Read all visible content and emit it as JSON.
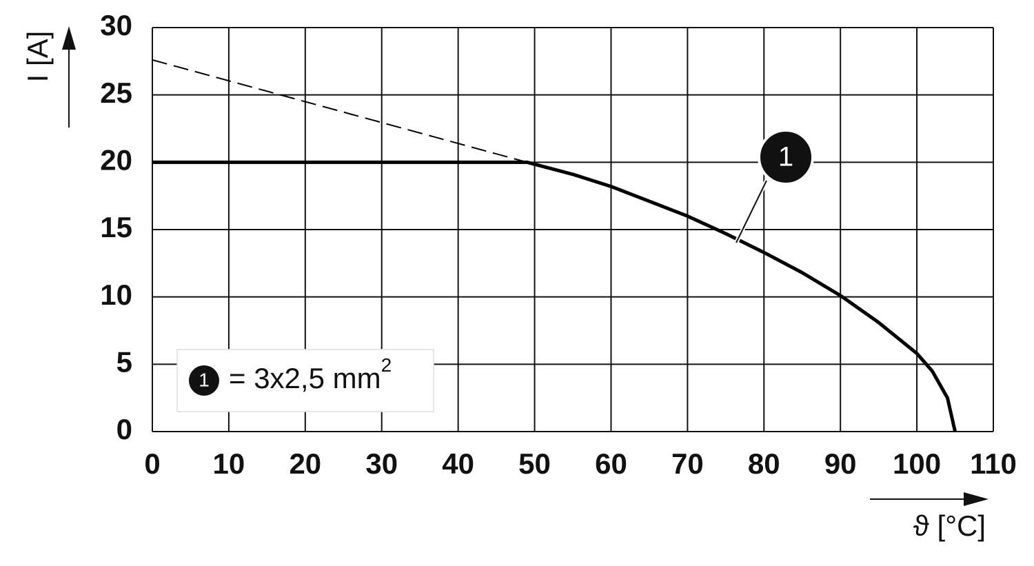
{
  "chart_data": {
    "type": "line",
    "x_label": "ϑ [°C]",
    "y_label": "I [A]",
    "xlim": [
      0,
      110
    ],
    "xticks": [
      0,
      10,
      20,
      30,
      40,
      50,
      60,
      70,
      80,
      90,
      100,
      110
    ],
    "ylim": [
      0,
      30
    ],
    "yticks": [
      0,
      5,
      10,
      15,
      20,
      25,
      30
    ],
    "grid": true,
    "series": [
      {
        "name": "1",
        "color": "#000000",
        "style": "solid",
        "x": [
          0,
          49,
          55,
          60,
          65,
          70,
          75,
          80,
          85,
          90,
          95,
          100,
          102,
          104,
          105
        ],
        "values": [
          20,
          20,
          19.1,
          18.2,
          17.1,
          16.0,
          14.7,
          13.3,
          11.8,
          10.1,
          8.1,
          5.8,
          4.5,
          2.5,
          0
        ]
      },
      {
        "color": "#000000",
        "style": "dashed",
        "x": [
          0,
          49
        ],
        "values": [
          27.6,
          20
        ]
      }
    ],
    "legend": {
      "marker": "1",
      "label": "= 3x2,5 mm",
      "superscript": "2",
      "position": "lower left"
    },
    "annotation": {
      "text": "1"
    }
  }
}
